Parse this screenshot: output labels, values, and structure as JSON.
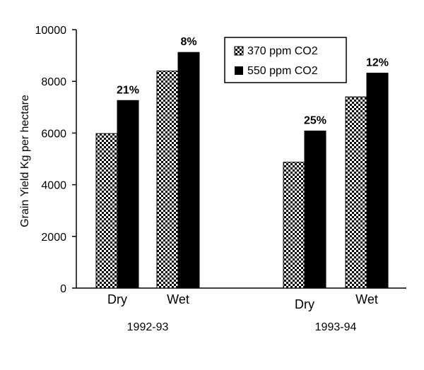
{
  "chart_data": {
    "type": "bar",
    "title": "",
    "xlabel": "",
    "ylabel": "Grain Yield  Kg per hectare",
    "ylim": [
      0,
      10000
    ],
    "yticks": [
      0,
      2000,
      4000,
      6000,
      8000,
      10000
    ],
    "grid": false,
    "legend_position": "top-right",
    "groups": [
      {
        "label": "1992-93",
        "categories": [
          {
            "label": "Dry",
            "values": [
              5980,
              7260
            ],
            "change_label": "21%"
          },
          {
            "label": "Wet",
            "values": [
              8400,
              9120
            ],
            "change_label": "8%"
          }
        ]
      },
      {
        "label": "1993-94",
        "categories": [
          {
            "label": "Dry",
            "values": [
              4870,
              6080
            ],
            "change_label": "25%"
          },
          {
            "label": "Wet",
            "values": [
              7400,
              8320
            ],
            "change_label": "12%"
          }
        ]
      }
    ],
    "series": [
      {
        "name": "370 ppm CO2",
        "fill": "checkered",
        "color": "#000000"
      },
      {
        "name": "550 ppm CO2",
        "fill": "solid",
        "color": "#000000"
      }
    ]
  }
}
